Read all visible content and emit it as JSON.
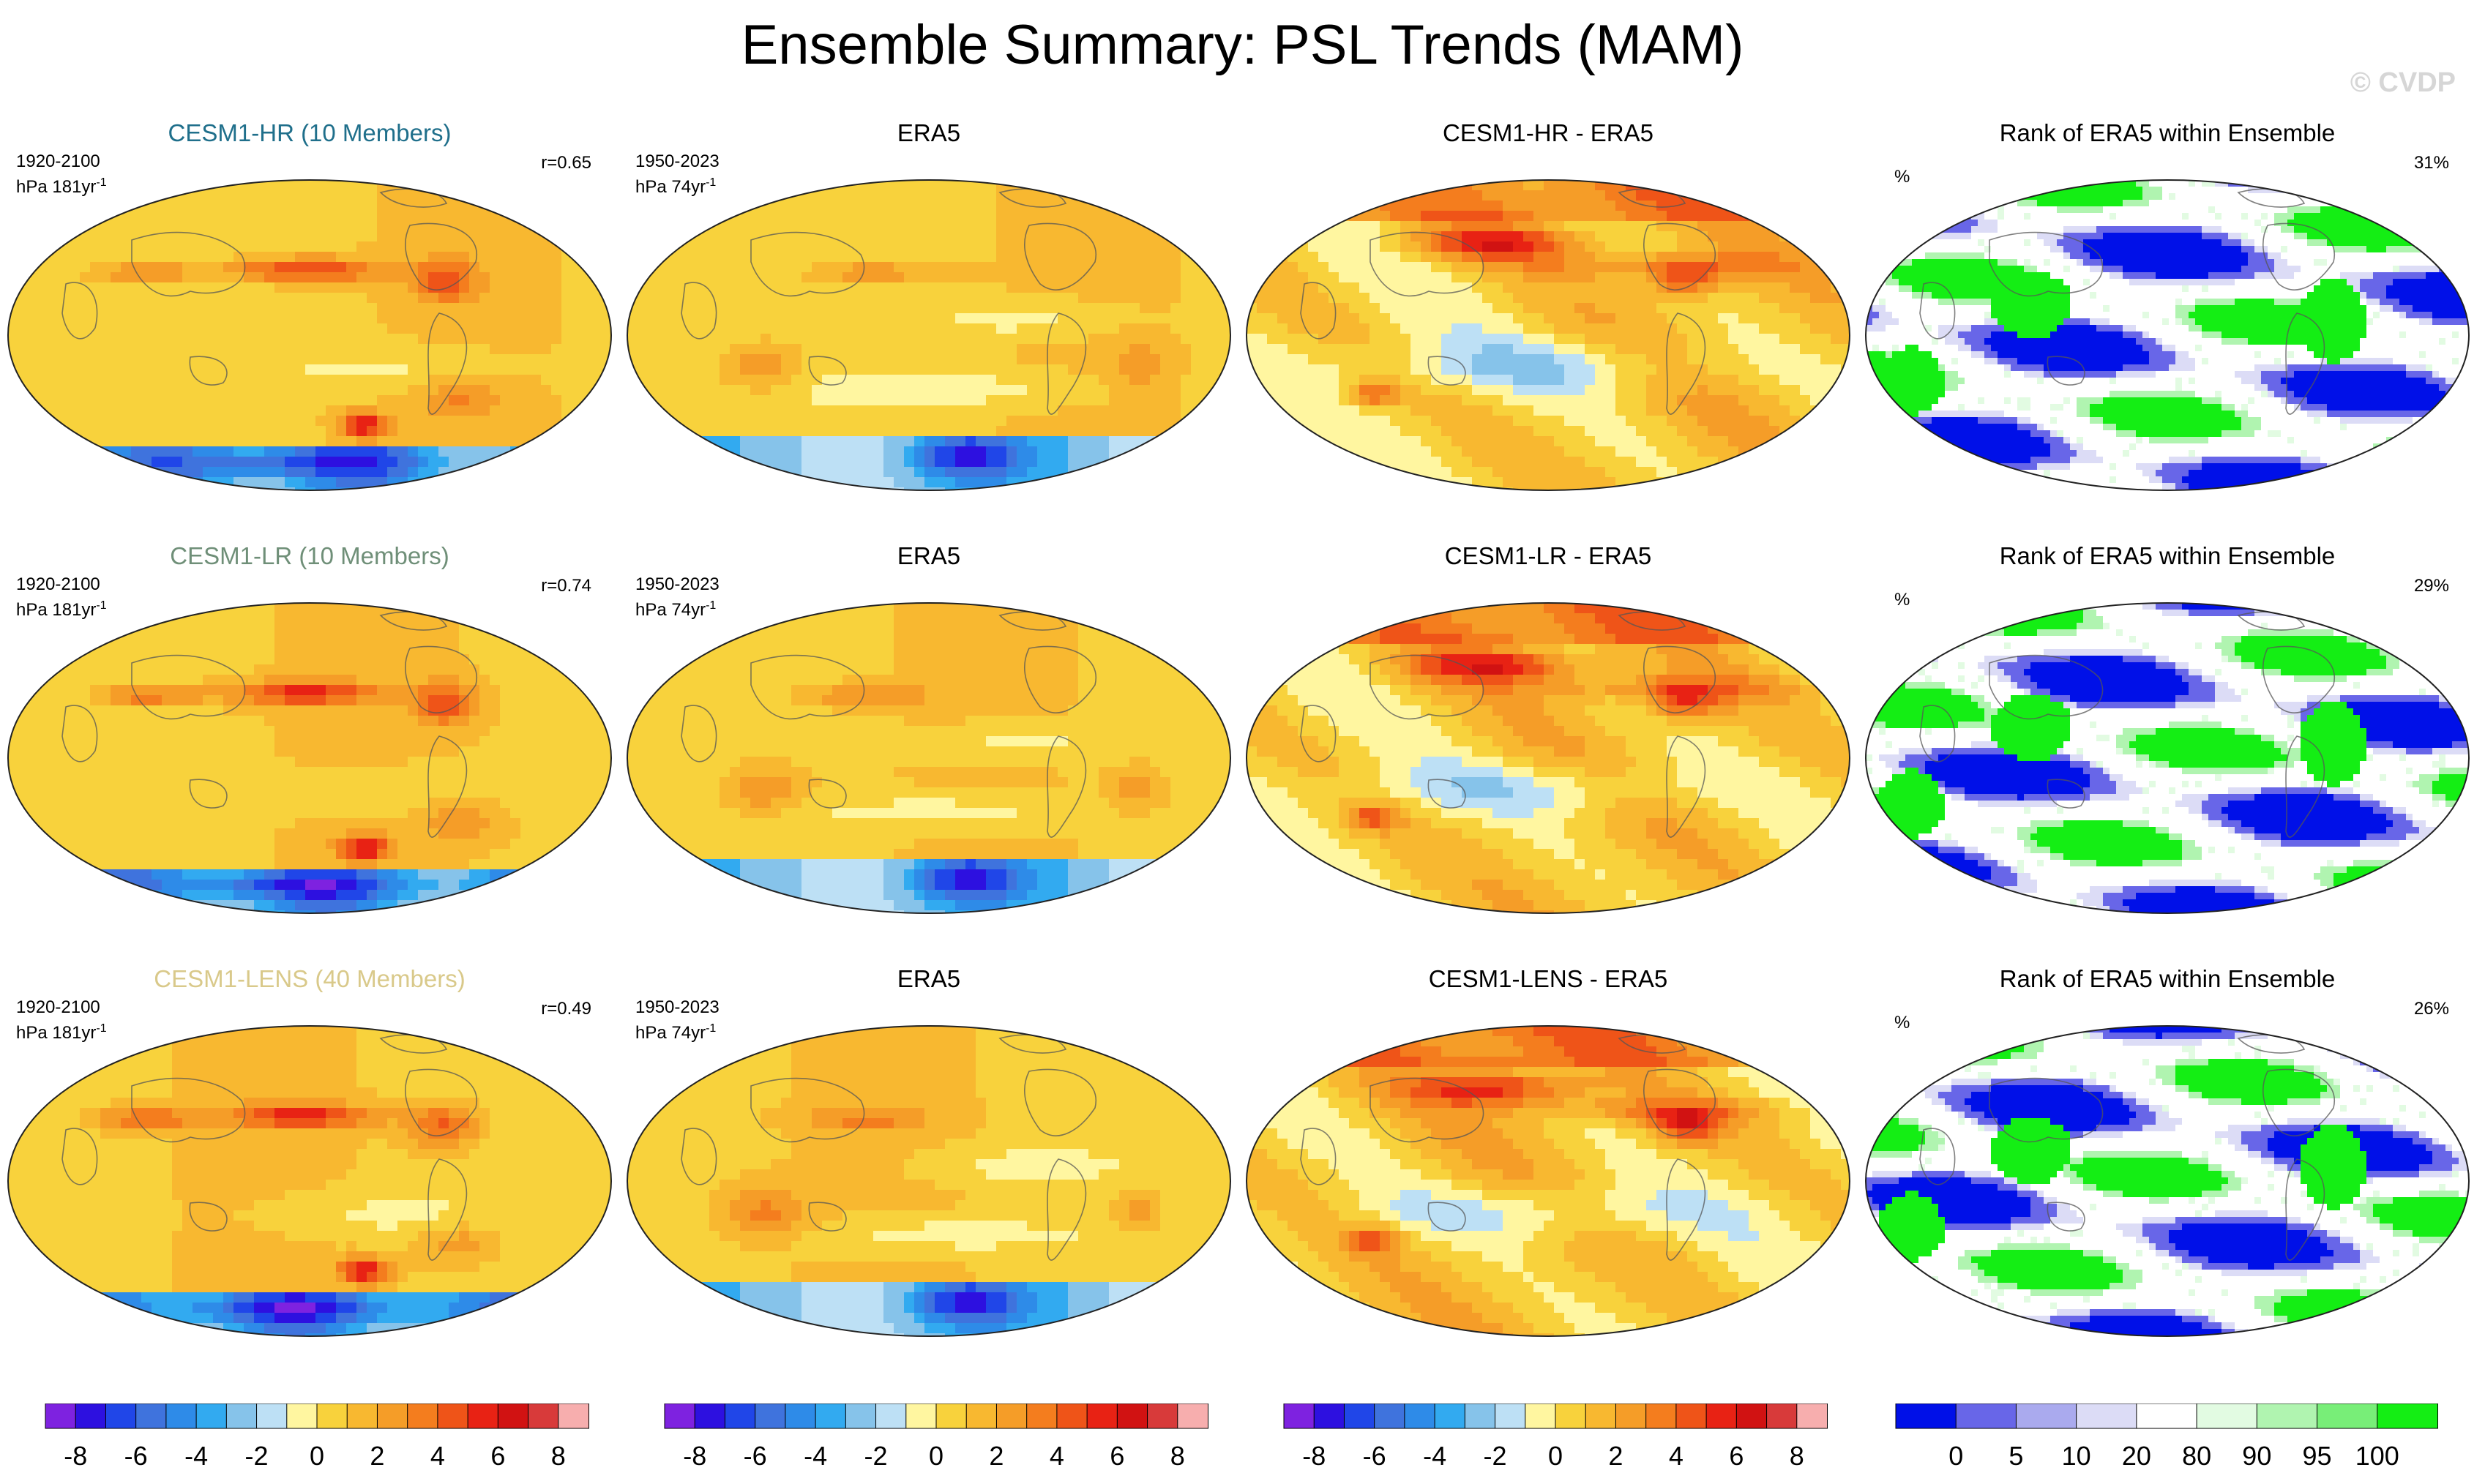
{
  "title": "Ensemble Summary: PSL Trends (MAM)",
  "watermark": "© CVDP",
  "chart_data": {
    "type": "heatmap",
    "variable": "PSL",
    "season": "MAM",
    "rows": [
      {
        "model": "CESM1-HR (10 Members)",
        "model_color": "#1f6f8b",
        "model_period": "1920-2100",
        "model_units": "hPa 181yr",
        "model_units_sup": "-1",
        "pattern_corr": "r=0.65",
        "obs_title": "ERA5",
        "obs_period": "1950-2023",
        "obs_units": "hPa 74yr",
        "obs_units_sup": "-1",
        "diff_title": "CESM1-HR - ERA5",
        "rank_title": "Rank of ERA5 within Ensemble",
        "rank_units": "%",
        "rank_pct": "31%"
      },
      {
        "model": "CESM1-LR (10 Members)",
        "model_color": "#6f8f78",
        "model_period": "1920-2100",
        "model_units": "hPa 181yr",
        "model_units_sup": "-1",
        "pattern_corr": "r=0.74",
        "obs_title": "ERA5",
        "obs_period": "1950-2023",
        "obs_units": "hPa 74yr",
        "obs_units_sup": "-1",
        "diff_title": "CESM1-LR - ERA5",
        "rank_title": "Rank of ERA5 within Ensemble",
        "rank_units": "%",
        "rank_pct": "29%"
      },
      {
        "model": "CESM1-LENS (40 Members)",
        "model_color": "#d9c98a",
        "model_period": "1920-2100",
        "model_units": "hPa 181yr",
        "model_units_sup": "-1",
        "pattern_corr": "r=0.49",
        "obs_title": "ERA5",
        "obs_period": "1950-2023",
        "obs_units": "hPa 74yr",
        "obs_units_sup": "-1",
        "diff_title": "CESM1-LENS - ERA5",
        "rank_title": "Rank of ERA5 within Ensemble",
        "rank_units": "%",
        "rank_pct": "26%"
      }
    ],
    "trend_colorbar": {
      "labels": [
        "-8",
        "-6",
        "-4",
        "-2",
        "0",
        "2",
        "4",
        "6",
        "8"
      ],
      "colors": [
        "#7e22e0",
        "#2d10e0",
        "#2046e8",
        "#3f73dd",
        "#2e8be8",
        "#32aaf0",
        "#86c3ea",
        "#bde0f5",
        "#fff6a0",
        "#f8d23c",
        "#f8b830",
        "#f59d28",
        "#f47d1e",
        "#ef5418",
        "#e82214",
        "#d11212",
        "#d83a3a",
        "#f7aeae"
      ]
    },
    "rank_colorbar": {
      "labels": [
        "0",
        "5",
        "10",
        "20",
        "80",
        "90",
        "95",
        "100"
      ],
      "colors": [
        "#0010e8",
        "#6866e8",
        "#aaaaee",
        "#dcdcf6",
        "#ffffff",
        "#e2fbe2",
        "#b0f4b0",
        "#78ee78",
        "#14ee14"
      ]
    }
  }
}
